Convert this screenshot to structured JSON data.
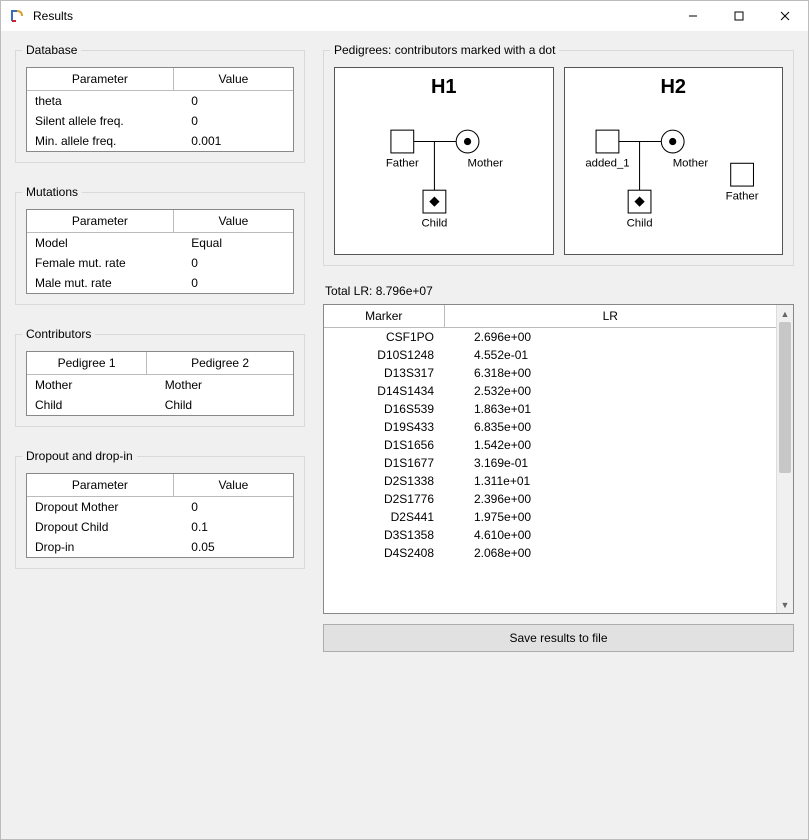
{
  "window": {
    "title": "Results"
  },
  "database": {
    "legend": "Database",
    "cols": [
      "Parameter",
      "Value"
    ],
    "rows": [
      {
        "param": "theta",
        "value": "0"
      },
      {
        "param": "Silent allele freq.",
        "value": "0"
      },
      {
        "param": "Min. allele freq.",
        "value": "0.001"
      }
    ]
  },
  "mutations": {
    "legend": "Mutations",
    "cols": [
      "Parameter",
      "Value"
    ],
    "rows": [
      {
        "param": "Model",
        "value": "Equal"
      },
      {
        "param": "Female mut. rate",
        "value": "0"
      },
      {
        "param": "Male mut. rate",
        "value": "0"
      }
    ]
  },
  "contributors": {
    "legend": "Contributors",
    "cols": [
      "Pedigree 1",
      "Pedigree 2"
    ],
    "rows": [
      {
        "p1": "Mother",
        "p2": "Mother"
      },
      {
        "p1": "Child",
        "p2": "Child"
      }
    ]
  },
  "dropout": {
    "legend": "Dropout and drop-in",
    "cols": [
      "Parameter",
      "Value"
    ],
    "rows": [
      {
        "param": "Dropout Mother",
        "value": "0"
      },
      {
        "param": "Dropout Child",
        "value": "0.1"
      },
      {
        "param": "Drop-in",
        "value": "0.05"
      }
    ]
  },
  "pedigrees": {
    "legend": "Pedigrees: contributors marked with a dot",
    "h1": {
      "title": "H1",
      "father": "Father",
      "mother": "Mother",
      "child": "Child"
    },
    "h2": {
      "title": "H2",
      "added": "added_1",
      "mother": "Mother",
      "child": "Child",
      "father": "Father"
    }
  },
  "totalLR": {
    "label": "Total LR: 8.796e+07"
  },
  "results": {
    "cols": [
      "Marker",
      "LR"
    ],
    "rows": [
      {
        "marker": "CSF1PO",
        "lr": "2.696e+00"
      },
      {
        "marker": "D10S1248",
        "lr": "4.552e-01"
      },
      {
        "marker": "D13S317",
        "lr": "6.318e+00"
      },
      {
        "marker": "D14S1434",
        "lr": "2.532e+00"
      },
      {
        "marker": "D16S539",
        "lr": "1.863e+01"
      },
      {
        "marker": "D19S433",
        "lr": "6.835e+00"
      },
      {
        "marker": "D1S1656",
        "lr": "1.542e+00"
      },
      {
        "marker": "D1S1677",
        "lr": "3.169e-01"
      },
      {
        "marker": "D2S1338",
        "lr": "1.311e+01"
      },
      {
        "marker": "D2S1776",
        "lr": "2.396e+00"
      },
      {
        "marker": "D2S441",
        "lr": "1.975e+00"
      },
      {
        "marker": "D3S1358",
        "lr": "4.610e+00"
      },
      {
        "marker": "D4S2408",
        "lr": "2.068e+00"
      }
    ]
  },
  "saveButton": {
    "label": "Save results to file"
  },
  "style": {
    "border_color": "#888888",
    "group_border": "#d9d9d9",
    "background": "#f0f0f0",
    "diagram": {
      "stroke": "#000000",
      "square_size": 22,
      "circle_r": 11,
      "dot_r": 3
    }
  }
}
